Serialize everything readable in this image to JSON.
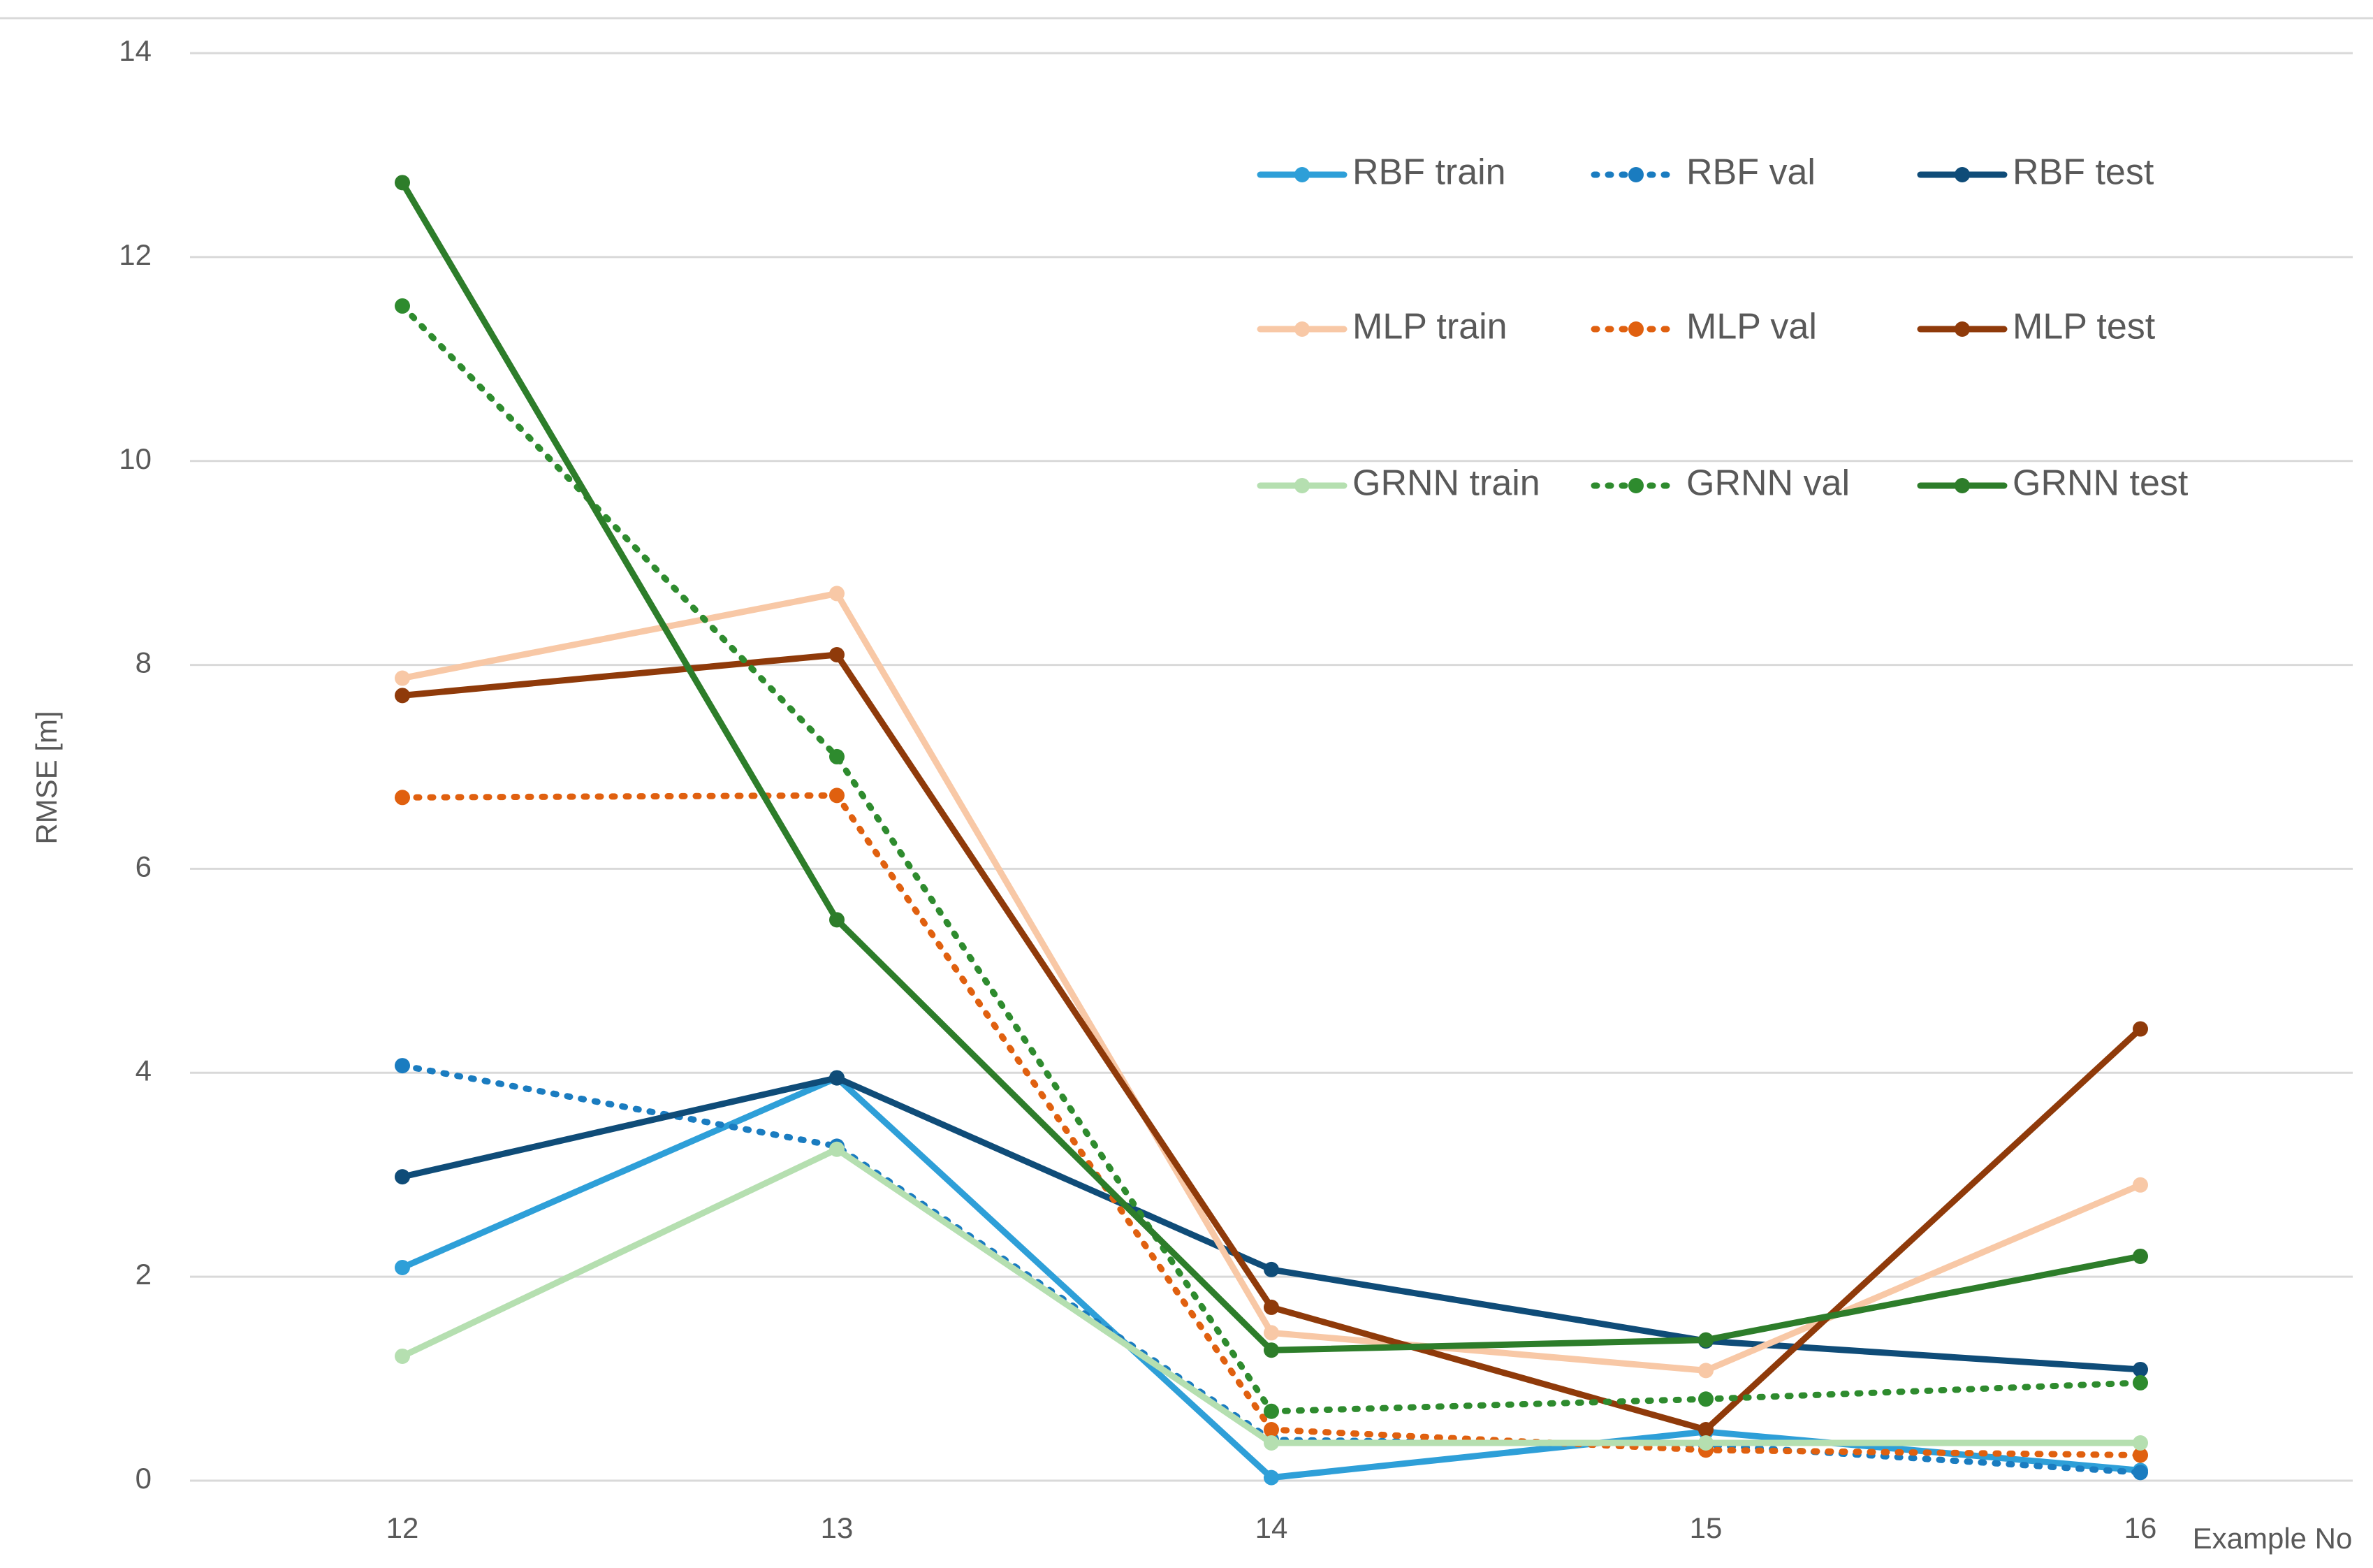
{
  "chart_data": {
    "type": "line",
    "y_label": "RMSE [m]",
    "x_label": "Example No",
    "categories": [
      "12",
      "13",
      "14",
      "15",
      "16"
    ],
    "ylim": [
      0,
      14
    ],
    "yticks": [
      0,
      2,
      4,
      6,
      8,
      10,
      12,
      14
    ],
    "grid": true,
    "legend": "top-right",
    "series": [
      {
        "name": "RBF train",
        "color": "#2e9fd8",
        "style": "solid",
        "values": [
          2.09,
          3.95,
          0.03,
          0.48,
          0.1
        ]
      },
      {
        "name": "RBF val",
        "color": "#1a7cc0",
        "style": "dotted",
        "values": [
          4.07,
          3.28,
          0.4,
          0.35,
          0.08
        ]
      },
      {
        "name": "RBF test",
        "color": "#0f4c78",
        "style": "solid",
        "values": [
          2.98,
          3.95,
          2.07,
          1.37,
          1.09
        ]
      },
      {
        "name": "MLP train",
        "color": "#f8c8a6",
        "style": "solid",
        "values": [
          7.87,
          8.7,
          1.45,
          1.08,
          2.9
        ]
      },
      {
        "name": "MLP val",
        "color": "#e0600f",
        "style": "dotted",
        "values": [
          6.7,
          6.72,
          0.5,
          0.3,
          0.25
        ]
      },
      {
        "name": "MLP test",
        "color": "#8f3a0a",
        "style": "solid",
        "values": [
          7.7,
          8.1,
          1.7,
          0.5,
          4.43
        ]
      },
      {
        "name": "GRNN train",
        "color": "#b5dfb0",
        "style": "solid",
        "values": [
          1.22,
          3.25,
          0.37,
          0.37,
          0.37
        ]
      },
      {
        "name": "GRNN val",
        "color": "#2e8b2e",
        "style": "dotted",
        "values": [
          11.52,
          7.1,
          0.68,
          0.8,
          0.96
        ]
      },
      {
        "name": "GRNN test",
        "color": "#2d7d2a",
        "style": "solid",
        "values": [
          12.73,
          5.5,
          1.28,
          1.38,
          2.2
        ]
      }
    ]
  }
}
